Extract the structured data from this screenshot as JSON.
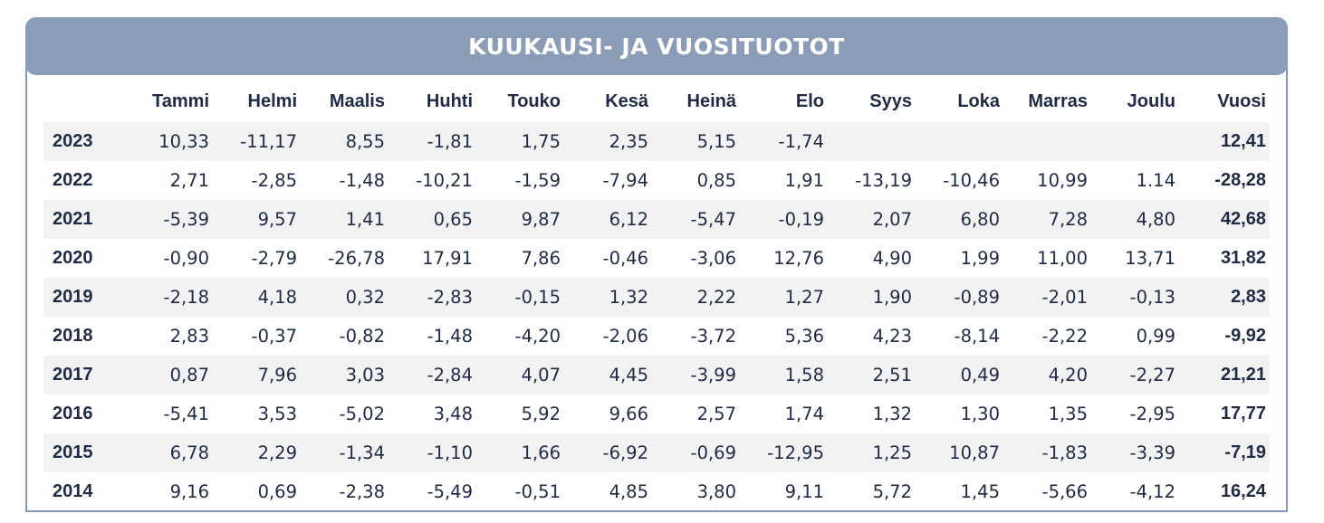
{
  "title": "KUUKAUSI- JA VUOSITUOTOT",
  "columns": [
    "Tammi",
    "Helmi",
    "Maalis",
    "Huhti",
    "Touko",
    "Kesä",
    "Heinä",
    "Elo",
    "Syys",
    "Loka",
    "Marras",
    "Joulu",
    "Vuosi"
  ],
  "rows": [
    {
      "year": "2023",
      "months": [
        "10,33",
        "-11,17",
        "8,55",
        "-1,81",
        "1,75",
        "2,35",
        "5,15",
        "-1,74",
        "",
        "",
        "",
        ""
      ],
      "annual": "12,41"
    },
    {
      "year": "2022",
      "months": [
        "2,71",
        "-2,85",
        "-1,48",
        "-10,21",
        "-1,59",
        "-7,94",
        "0,85",
        "1,91",
        "-13,19",
        "-10,46",
        "10,99",
        "1.14"
      ],
      "annual": "-28,28"
    },
    {
      "year": "2021",
      "months": [
        "-5,39",
        "9,57",
        "1,41",
        "0,65",
        "9,87",
        "6,12",
        "-5,47",
        "-0,19",
        "2,07",
        "6,80",
        "7,28",
        "4,80"
      ],
      "annual": "42,68"
    },
    {
      "year": "2020",
      "months": [
        "-0,90",
        "-2,79",
        "-26,78",
        "17,91",
        "7,86",
        "-0,46",
        "-3,06",
        "12,76",
        "4,90",
        "1,99",
        "11,00",
        "13,71"
      ],
      "annual": "31,82"
    },
    {
      "year": "2019",
      "months": [
        "-2,18",
        "4,18",
        "0,32",
        "-2,83",
        "-0,15",
        "1,32",
        "2,22",
        "1,27",
        "1,90",
        "-0,89",
        "-2,01",
        "-0,13"
      ],
      "annual": "2,83"
    },
    {
      "year": "2018",
      "months": [
        "2,83",
        "-0,37",
        "-0,82",
        "-1,48",
        "-4,20",
        "-2,06",
        "-3,72",
        "5,36",
        "4,23",
        "-8,14",
        "-2,22",
        "0,99"
      ],
      "annual": "-9,92"
    },
    {
      "year": "2017",
      "months": [
        "0,87",
        "7,96",
        "3,03",
        "-2,84",
        "4,07",
        "4,45",
        "-3,99",
        "1,58",
        "2,51",
        "0,49",
        "4,20",
        "-2,27"
      ],
      "annual": "21,21"
    },
    {
      "year": "2016",
      "months": [
        "-5,41",
        "3,53",
        "-5,02",
        "3,48",
        "5,92",
        "9,66",
        "2,57",
        "1,74",
        "1,32",
        "1,30",
        "1,35",
        "-2,95"
      ],
      "annual": "17,77"
    },
    {
      "year": "2015",
      "months": [
        "6,78",
        "2,29",
        "-1,34",
        "-1,10",
        "1,66",
        "-6,92",
        "-0,69",
        "-12,95",
        "1,25",
        "10,87",
        "-1,83",
        "-3,39"
      ],
      "annual": "-7,19"
    },
    {
      "year": "2014",
      "months": [
        "9,16",
        "0,69",
        "-2,38",
        "-5,49",
        "-0,51",
        "4,85",
        "3,80",
        "9,11",
        "5,72",
        "1,45",
        "-5,66",
        "-4,12"
      ],
      "annual": "16,24"
    }
  ],
  "colors": {
    "title_bar": "#8a9cb6",
    "border": "#8699b4",
    "stripe": "#f2f2f2",
    "text": "#1f2a44"
  }
}
